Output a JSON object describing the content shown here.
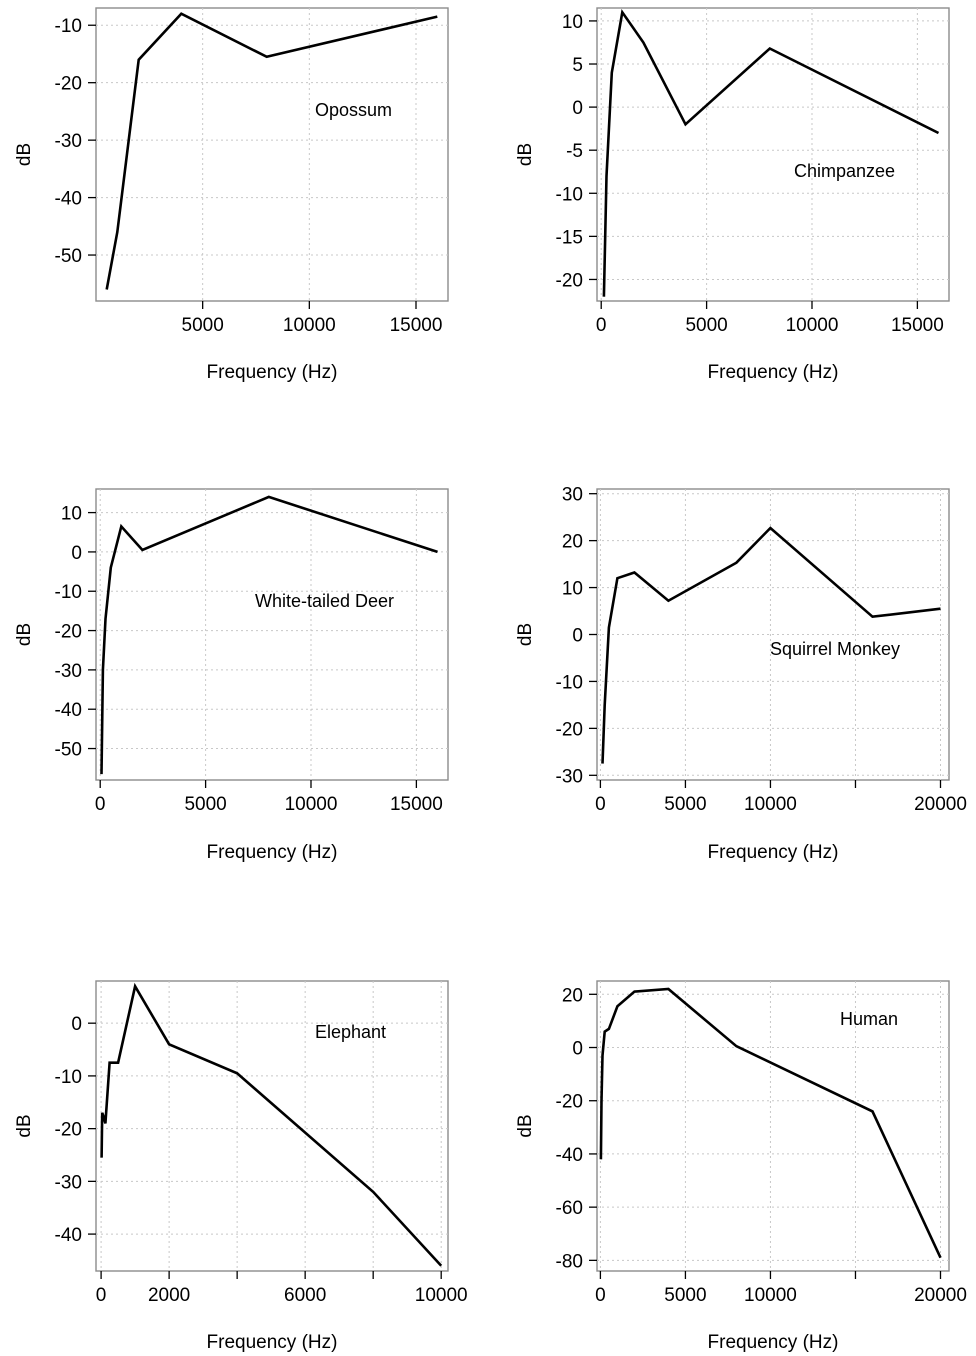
{
  "figure": {
    "background": "#ffffff",
    "line_color": "#000000",
    "grid": true,
    "grid_style": "dotted"
  },
  "chart_data": [
    {
      "type": "line",
      "annotation": "Opossum",
      "xlabel": "Frequency (Hz)",
      "ylabel": "dB",
      "xlim": [
        0,
        16500
      ],
      "ylim": [
        -58,
        -7
      ],
      "xticks": [
        5000,
        10000,
        15000
      ],
      "xtick_labels": [
        "5000",
        "10000",
        "15000"
      ],
      "yticks": [
        -50,
        -40,
        -30,
        -20,
        -10
      ],
      "ytick_labels": [
        "-50",
        "-40",
        "-30",
        "-20",
        "-10"
      ],
      "x": [
        500,
        1000,
        2000,
        4000,
        8000,
        16000
      ],
      "y": [
        -56,
        -46,
        -16,
        -8,
        -15.5,
        -8.5
      ]
    },
    {
      "type": "line",
      "annotation": "Chimpanzee",
      "xlabel": "Frequency (Hz)",
      "ylabel": "dB",
      "xlim": [
        -200,
        16500
      ],
      "ylim": [
        -22.5,
        11.5
      ],
      "xticks": [
        0,
        5000,
        10000,
        15000
      ],
      "xtick_labels": [
        "0",
        "5000",
        "10000",
        "15000"
      ],
      "yticks": [
        -20,
        -15,
        -10,
        -5,
        0,
        5,
        10
      ],
      "ytick_labels": [
        "-20",
        "-15",
        "-10",
        "-5",
        "0",
        "5",
        "10"
      ],
      "x": [
        125,
        250,
        500,
        1000,
        2000,
        4000,
        8000,
        16000
      ],
      "y": [
        -22,
        -8,
        4,
        11,
        7.5,
        -2,
        6.8,
        -3
      ]
    },
    {
      "type": "line",
      "annotation": "White-tailed Deer",
      "xlabel": "Frequency (Hz)",
      "ylabel": "dB",
      "xlim": [
        -200,
        16500
      ],
      "ylim": [
        -58,
        16
      ],
      "xticks": [
        0,
        5000,
        10000,
        15000
      ],
      "xtick_labels": [
        "0",
        "5000",
        "10000",
        "15000"
      ],
      "yticks": [
        -50,
        -40,
        -30,
        -20,
        -10,
        0,
        10
      ],
      "ytick_labels": [
        "-50",
        "-40",
        "-30",
        "-20",
        "-10",
        "0",
        "10"
      ],
      "x": [
        63,
        125,
        250,
        500,
        1000,
        2000,
        8000,
        16000
      ],
      "y": [
        -56.5,
        -30,
        -17,
        -4,
        6.5,
        0.5,
        14,
        0
      ]
    },
    {
      "type": "line",
      "annotation": "Squirrel Monkey",
      "xlabel": "Frequency (Hz)",
      "ylabel": "dB",
      "xlim": [
        -200,
        20500
      ],
      "ylim": [
        -31,
        31
      ],
      "xticks": [
        0,
        5000,
        10000,
        15000,
        20000
      ],
      "xtick_labels": [
        "0",
        "5000",
        "10000",
        "",
        "20000"
      ],
      "yticks": [
        -30,
        -20,
        -10,
        0,
        10,
        20,
        30
      ],
      "ytick_labels": [
        "-30",
        "-20",
        "-10",
        "0",
        "10",
        "20",
        "30"
      ],
      "x": [
        125,
        250,
        500,
        1000,
        2000,
        4000,
        8000,
        10000,
        16000,
        20000
      ],
      "y": [
        -27.5,
        -15,
        1.5,
        12,
        13.2,
        7.2,
        15.3,
        22.7,
        3.8,
        5.5
      ]
    },
    {
      "type": "line",
      "annotation": "Elephant",
      "xlabel": "Frequency (Hz)",
      "ylabel": "dB",
      "xlim": [
        -150,
        10200
      ],
      "ylim": [
        -47,
        8
      ],
      "xticks": [
        0,
        2000,
        4000,
        6000,
        8000,
        10000
      ],
      "xtick_labels": [
        "0",
        "2000",
        "",
        "6000",
        "",
        "10000"
      ],
      "yticks": [
        -40,
        -30,
        -20,
        -10,
        0
      ],
      "ytick_labels": [
        "-40",
        "-30",
        "-20",
        "-10",
        "0"
      ],
      "x": [
        16,
        31.5,
        63,
        125,
        250,
        500,
        1000,
        2000,
        4000,
        8000,
        10000
      ],
      "y": [
        -25.5,
        -17,
        -17.5,
        -19,
        -7.5,
        -7.5,
        7,
        -4,
        -9.5,
        -32,
        -46
      ]
    },
    {
      "type": "line",
      "annotation": "Human",
      "xlabel": "Frequency (Hz)",
      "ylabel": "dB",
      "xlim": [
        -200,
        20500
      ],
      "ylim": [
        -84,
        25
      ],
      "xticks": [
        0,
        5000,
        10000,
        15000,
        20000
      ],
      "xtick_labels": [
        "0",
        "5000",
        "10000",
        "",
        "20000"
      ],
      "yticks": [
        -80,
        -60,
        -40,
        -20,
        0,
        20
      ],
      "ytick_labels": [
        "-80",
        "-60",
        "-40",
        "-20",
        "0",
        "20"
      ],
      "x": [
        31.5,
        63,
        125,
        250,
        500,
        1000,
        2000,
        4000,
        8000,
        16000,
        20000
      ],
      "y": [
        -42,
        -20,
        -3,
        6,
        7,
        15.5,
        21,
        22,
        0.5,
        -24,
        -79
      ]
    }
  ]
}
